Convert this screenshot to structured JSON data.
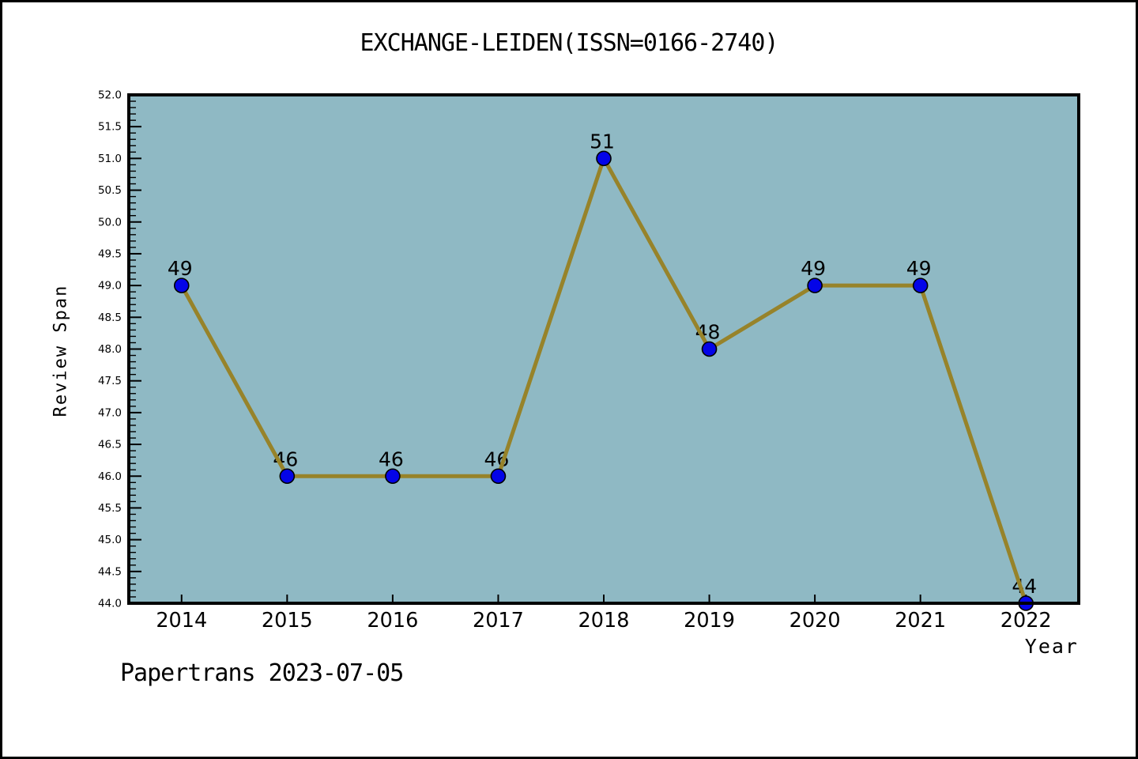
{
  "page": {
    "title": "EXCHANGE-LEIDEN(ISSN=0166-2740)",
    "footer": "Papertrans 2023-07-05"
  },
  "chart_data": {
    "type": "line",
    "title": "EXCHANGE-LEIDEN(ISSN=0166-2740)",
    "xlabel": "Year",
    "ylabel": "Review Span",
    "categories": [
      "2014",
      "2015",
      "2016",
      "2017",
      "2018",
      "2019",
      "2020",
      "2021",
      "2022"
    ],
    "series": [
      {
        "name": "Review Span",
        "values": [
          49,
          46,
          46,
          46,
          51,
          48,
          49,
          49,
          44
        ]
      }
    ],
    "point_labels": [
      "49",
      "46",
      "46",
      "46",
      "51",
      "48",
      "49",
      "49",
      "44"
    ],
    "ylim": [
      44.0,
      52.0
    ],
    "ytick_major_step": 0.5,
    "ytick_minor_step": 0.1,
    "ytick_label_format": "one_decimal",
    "grid": false,
    "legend_position": "none",
    "tick_direction": "in",
    "colors": {
      "line": "#97832a",
      "marker_fill": "#0404e8",
      "marker_edge": "#000000",
      "plot_background": "#8fb9c4",
      "axis_frame": "#000000",
      "text": "#000000",
      "page_background": "#ffffff"
    }
  }
}
